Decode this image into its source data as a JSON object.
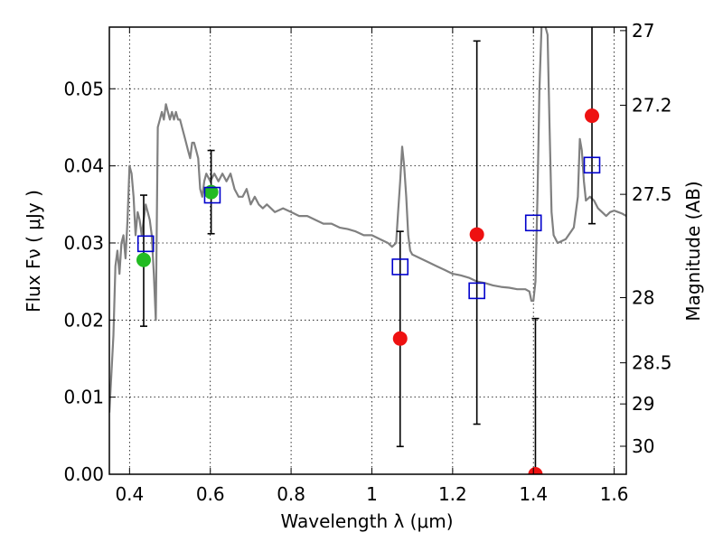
{
  "chart_data": {
    "type": "scatter",
    "title": "",
    "xlabel": "Wavelength  λ (μm)",
    "ylabel": "Flux  Fν ( μJy )",
    "y2label": "Magnitude (AB)",
    "xlim": [
      0.35,
      1.63
    ],
    "ylim": [
      0.0,
      0.058
    ],
    "grid": true,
    "xticks": [
      0.4,
      0.6,
      0.8,
      1.0,
      1.2,
      1.4,
      1.6
    ],
    "xtick_labels": [
      "0.4",
      "0.6",
      "0.8",
      "1",
      "1.2",
      "1.4",
      "1.6"
    ],
    "yticks": [
      0.0,
      0.01,
      0.02,
      0.03,
      0.04,
      0.05
    ],
    "ytick_labels": [
      "0.00",
      "0.01",
      "0.02",
      "0.03",
      "0.04",
      "0.05"
    ],
    "y2ticks": [
      27,
      27.2,
      27.5,
      28,
      28.5,
      29,
      30
    ],
    "y2tick_labels": [
      "27",
      "27.2",
      "27.5",
      "28",
      "28.5",
      "29",
      "30"
    ],
    "colors": {
      "sed": "#808080",
      "green": "#22bb22",
      "red": "#ee1111",
      "model": "#0000cc",
      "errorbar": "#000000"
    },
    "sed": [
      [
        0.35,
        0.008
      ],
      [
        0.36,
        0.018
      ],
      [
        0.365,
        0.027
      ],
      [
        0.37,
        0.029
      ],
      [
        0.375,
        0.026
      ],
      [
        0.38,
        0.03
      ],
      [
        0.385,
        0.031
      ],
      [
        0.39,
        0.028
      ],
      [
        0.395,
        0.033
      ],
      [
        0.4,
        0.04
      ],
      [
        0.405,
        0.039
      ],
      [
        0.41,
        0.036
      ],
      [
        0.415,
        0.031
      ],
      [
        0.42,
        0.034
      ],
      [
        0.425,
        0.033
      ],
      [
        0.43,
        0.031
      ],
      [
        0.435,
        0.033
      ],
      [
        0.44,
        0.035
      ],
      [
        0.445,
        0.034
      ],
      [
        0.45,
        0.033
      ],
      [
        0.455,
        0.031
      ],
      [
        0.46,
        0.026
      ],
      [
        0.465,
        0.02
      ],
      [
        0.47,
        0.045
      ],
      [
        0.475,
        0.046
      ],
      [
        0.48,
        0.047
      ],
      [
        0.485,
        0.046
      ],
      [
        0.49,
        0.048
      ],
      [
        0.495,
        0.047
      ],
      [
        0.5,
        0.046
      ],
      [
        0.505,
        0.047
      ],
      [
        0.51,
        0.046
      ],
      [
        0.515,
        0.047
      ],
      [
        0.52,
        0.046
      ],
      [
        0.525,
        0.046
      ],
      [
        0.53,
        0.045
      ],
      [
        0.535,
        0.044
      ],
      [
        0.54,
        0.043
      ],
      [
        0.545,
        0.042
      ],
      [
        0.55,
        0.041
      ],
      [
        0.555,
        0.043
      ],
      [
        0.56,
        0.043
      ],
      [
        0.565,
        0.042
      ],
      [
        0.57,
        0.041
      ],
      [
        0.575,
        0.037
      ],
      [
        0.58,
        0.036
      ],
      [
        0.585,
        0.038
      ],
      [
        0.59,
        0.039
      ],
      [
        0.6,
        0.038
      ],
      [
        0.61,
        0.039
      ],
      [
        0.62,
        0.038
      ],
      [
        0.63,
        0.039
      ],
      [
        0.64,
        0.038
      ],
      [
        0.65,
        0.039
      ],
      [
        0.66,
        0.037
      ],
      [
        0.67,
        0.036
      ],
      [
        0.68,
        0.036
      ],
      [
        0.69,
        0.037
      ],
      [
        0.7,
        0.035
      ],
      [
        0.71,
        0.036
      ],
      [
        0.72,
        0.035
      ],
      [
        0.73,
        0.0345
      ],
      [
        0.74,
        0.035
      ],
      [
        0.75,
        0.0345
      ],
      [
        0.76,
        0.034
      ],
      [
        0.78,
        0.0345
      ],
      [
        0.8,
        0.034
      ],
      [
        0.82,
        0.0335
      ],
      [
        0.84,
        0.0335
      ],
      [
        0.86,
        0.033
      ],
      [
        0.88,
        0.0325
      ],
      [
        0.9,
        0.0325
      ],
      [
        0.92,
        0.032
      ],
      [
        0.94,
        0.0318
      ],
      [
        0.96,
        0.0315
      ],
      [
        0.98,
        0.031
      ],
      [
        1.0,
        0.031
      ],
      [
        1.02,
        0.0305
      ],
      [
        1.04,
        0.03
      ],
      [
        1.05,
        0.0295
      ],
      [
        1.06,
        0.03
      ],
      [
        1.065,
        0.034
      ],
      [
        1.07,
        0.038
      ],
      [
        1.075,
        0.0425
      ],
      [
        1.08,
        0.04
      ],
      [
        1.085,
        0.036
      ],
      [
        1.09,
        0.031
      ],
      [
        1.095,
        0.029
      ],
      [
        1.1,
        0.0285
      ],
      [
        1.12,
        0.028
      ],
      [
        1.14,
        0.0275
      ],
      [
        1.16,
        0.027
      ],
      [
        1.18,
        0.0265
      ],
      [
        1.2,
        0.026
      ],
      [
        1.22,
        0.0258
      ],
      [
        1.24,
        0.0255
      ],
      [
        1.26,
        0.025
      ],
      [
        1.28,
        0.0248
      ],
      [
        1.3,
        0.0245
      ],
      [
        1.32,
        0.0243
      ],
      [
        1.34,
        0.0242
      ],
      [
        1.36,
        0.024
      ],
      [
        1.38,
        0.024
      ],
      [
        1.39,
        0.0237
      ],
      [
        1.395,
        0.0225
      ],
      [
        1.4,
        0.0225
      ],
      [
        1.405,
        0.025
      ],
      [
        1.41,
        0.036
      ],
      [
        1.415,
        0.05
      ],
      [
        1.42,
        0.058
      ],
      [
        1.425,
        0.0585
      ],
      [
        1.43,
        0.058
      ],
      [
        1.435,
        0.057
      ],
      [
        1.44,
        0.045
      ],
      [
        1.445,
        0.034
      ],
      [
        1.45,
        0.031
      ],
      [
        1.46,
        0.03
      ],
      [
        1.48,
        0.0305
      ],
      [
        1.5,
        0.032
      ],
      [
        1.51,
        0.036
      ],
      [
        1.515,
        0.0435
      ],
      [
        1.52,
        0.042
      ],
      [
        1.525,
        0.038
      ],
      [
        1.53,
        0.0355
      ],
      [
        1.54,
        0.036
      ],
      [
        1.55,
        0.0355
      ],
      [
        1.56,
        0.0345
      ],
      [
        1.57,
        0.034
      ],
      [
        1.58,
        0.0335
      ],
      [
        1.59,
        0.034
      ],
      [
        1.6,
        0.0342
      ],
      [
        1.61,
        0.034
      ],
      [
        1.62,
        0.0338
      ],
      [
        1.63,
        0.0335
      ]
    ],
    "observed_green": [
      {
        "x": 0.435,
        "y": 0.0278,
        "yerr_low": 0.0192,
        "yerr_high": 0.0362
      },
      {
        "x": 0.602,
        "y": 0.0366,
        "yerr_low": 0.0312,
        "yerr_high": 0.042
      }
    ],
    "observed_red": [
      {
        "x": 1.07,
        "y": 0.0176,
        "yerr_low": 0.0036,
        "yerr_high": 0.0315
      },
      {
        "x": 1.26,
        "y": 0.0311,
        "yerr_low": 0.0065,
        "yerr_high": 0.0562
      },
      {
        "x": 1.405,
        "y": 0.0,
        "yerr_low": 0.0,
        "yerr_high": 0.0202
      },
      {
        "x": 1.545,
        "y": 0.0465,
        "yerr_low": 0.0325,
        "yerr_high": 0.0585
      }
    ],
    "model_points": [
      {
        "x": 0.44,
        "y": 0.0299
      },
      {
        "x": 0.605,
        "y": 0.0362
      },
      {
        "x": 1.07,
        "y": 0.0269
      },
      {
        "x": 1.26,
        "y": 0.0238
      },
      {
        "x": 1.4,
        "y": 0.0326
      },
      {
        "x": 1.545,
        "y": 0.0401
      }
    ]
  }
}
